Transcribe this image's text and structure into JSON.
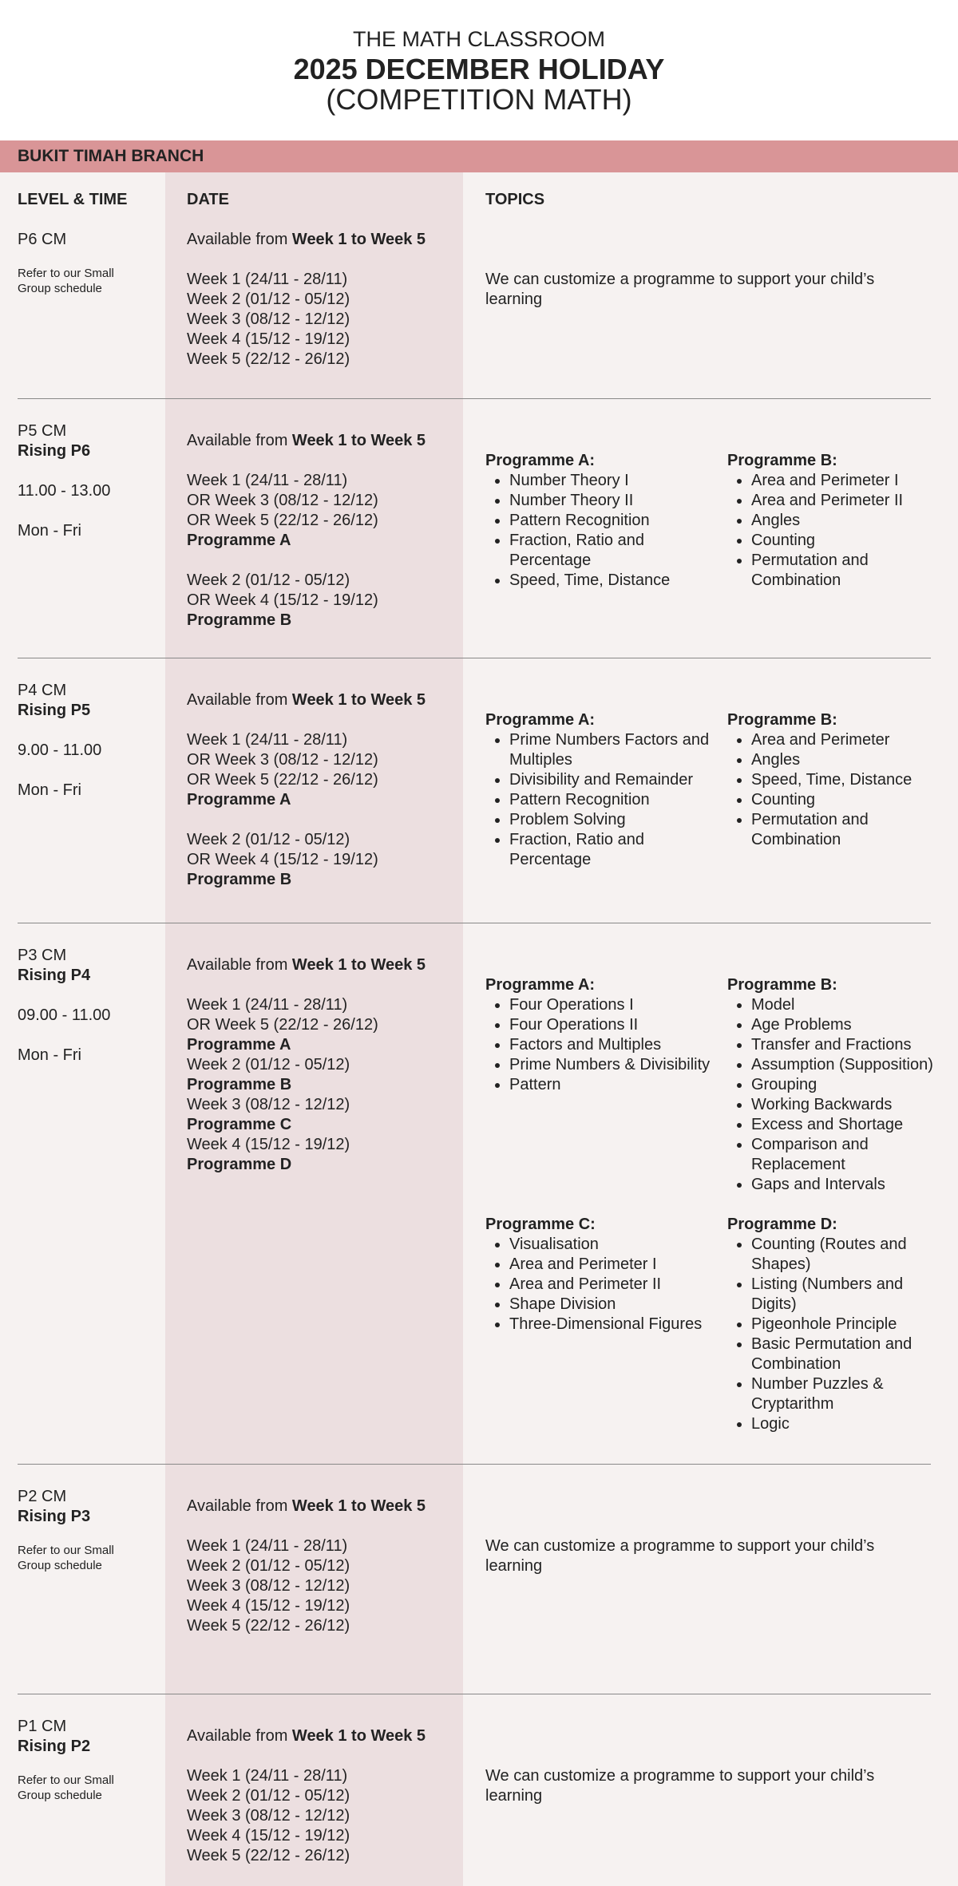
{
  "header": {
    "line1": "THE MATH CLASSROOM",
    "line2": "2025 DECEMBER HOLIDAY",
    "line3": "(COMPETITION MATH)"
  },
  "branch": "BUKIT TIMAH BRANCH",
  "columns": [
    "LEVEL & TIME",
    "DATE",
    "TOPICS"
  ],
  "rows": [
    {
      "level": "P6 CM",
      "note": "Refer to our Small Group schedule",
      "available": {
        "prefix": "Available from",
        "range": "Week 1 to Week 5"
      },
      "date_groups": [
        [
          {
            "text": "Week 1 (24/11 - 28/11)"
          },
          {
            "text": "Week 2 (01/12 - 05/12)"
          },
          {
            "text": "Week 3 (08/12 - 12/12)"
          },
          {
            "text": "Week 4 (15/12 - 19/12)"
          },
          {
            "text": "Week 5 (22/12 - 26/12)"
          }
        ]
      ],
      "topics_note": "We can customize a programme to support your child’s learning"
    },
    {
      "level": "P5 CM",
      "rising": "Rising P6",
      "time": "11.00 - 13.00",
      "days": "Mon - Fri",
      "available": {
        "prefix": "Available from",
        "range": "Week 1 to Week 5"
      },
      "date_groups": [
        [
          {
            "text": "Week 1 (24/11 - 28/11)"
          },
          {
            "text": "OR Week 3 (08/12 - 12/12)"
          },
          {
            "text": "OR Week 5 (22/12 - 26/12)"
          },
          {
            "text": "Programme A",
            "bold": true
          }
        ],
        [
          {
            "text": "Week 2 (01/12 - 05/12)"
          },
          {
            "text": "OR Week 4 (15/12 - 19/12)"
          },
          {
            "text": "Programme B",
            "bold": true
          }
        ]
      ],
      "programmes": [
        {
          "name": "Programme A:",
          "items": [
            "Number Theory I",
            "Number Theory II",
            "Pattern Recognition",
            "Fraction, Ratio and Percentage",
            "Speed, Time, Distance"
          ]
        },
        {
          "name": "Programme B:",
          "items": [
            "Area and Perimeter I",
            "Area and Perimeter II",
            "Angles",
            "Counting",
            "Permutation and Combination"
          ]
        }
      ]
    },
    {
      "level": "P4 CM",
      "rising": "Rising P5",
      "time": "9.00 - 11.00",
      "days": "Mon - Fri",
      "available": {
        "prefix": "Available from",
        "range": "Week 1 to Week 5"
      },
      "date_groups": [
        [
          {
            "text": "Week 1 (24/11 - 28/11)"
          },
          {
            "text": "OR Week 3 (08/12 - 12/12)"
          },
          {
            "text": "OR Week 5 (22/12 - 26/12)"
          },
          {
            "text": "Programme A",
            "bold": true
          }
        ],
        [
          {
            "text": "Week 2 (01/12 - 05/12)"
          },
          {
            "text": "OR Week 4 (15/12 - 19/12)"
          },
          {
            "text": "Programme B",
            "bold": true
          }
        ]
      ],
      "programmes": [
        {
          "name": "Programme A:",
          "items": [
            "Prime Numbers Factors and Multiples",
            "Divisibility and Remainder",
            "Pattern Recognition",
            "Problem Solving",
            "Fraction, Ratio and Percentage"
          ]
        },
        {
          "name": "Programme B:",
          "items": [
            "Area and Perimeter",
            "Angles",
            "Speed, Time, Distance",
            "Counting",
            "Permutation and Combination"
          ]
        }
      ]
    },
    {
      "level": "P3 CM",
      "rising": "Rising P4",
      "time": "09.00 - 11.00",
      "days": "Mon - Fri",
      "available": {
        "prefix": "Available from",
        "range": "Week 1 to Week 5"
      },
      "date_groups": [
        [
          {
            "text": "Week 1 (24/11 - 28/11)"
          },
          {
            "text": "OR Week 5 (22/12 - 26/12)"
          },
          {
            "text": "Programme A",
            "bold": true
          },
          {
            "text": "Week 2 (01/12 - 05/12)"
          },
          {
            "text": "Programme B",
            "bold": true
          },
          {
            "text": "Week 3 (08/12 - 12/12)"
          },
          {
            "text": "Programme C",
            "bold": true
          },
          {
            "text": "Week 4 (15/12 - 19/12)"
          },
          {
            "text": "Programme D",
            "bold": true
          }
        ]
      ],
      "programmes": [
        {
          "name": "Programme A:",
          "items": [
            "Four Operations I",
            "Four Operations II",
            "Factors and Multiples",
            "Prime Numbers & Divisibility",
            "Pattern"
          ]
        },
        {
          "name": "Programme B:",
          "items": [
            "Model",
            "Age Problems",
            "Transfer and Fractions",
            "Assumption (Supposition)",
            "Grouping",
            "Working Backwards",
            "Excess and Shortage",
            "Comparison and Replacement",
            "Gaps and Intervals"
          ]
        },
        {
          "name": "Programme C:",
          "items": [
            "Visualisation",
            "Area and Perimeter I",
            "Area and Perimeter II",
            "Shape Division",
            "Three-Dimensional Figures"
          ]
        },
        {
          "name": "Programme D:",
          "items": [
            "Counting (Routes and Shapes)",
            "Listing (Numbers and Digits)",
            "Pigeonhole Principle",
            "Basic Permutation and Combination",
            "Number Puzzles & Cryptarithm",
            "Logic"
          ]
        }
      ]
    },
    {
      "level": "P2 CM",
      "rising": "Rising P3",
      "note": "Refer to our Small Group schedule",
      "available": {
        "prefix": "Available from",
        "range": "Week 1 to Week 5"
      },
      "date_groups": [
        [
          {
            "text": "Week 1 (24/11 - 28/11)"
          },
          {
            "text": "Week 2 (01/12 - 05/12)"
          },
          {
            "text": "Week 3 (08/12 - 12/12)"
          },
          {
            "text": "Week 4 (15/12 - 19/12)"
          },
          {
            "text": "Week 5 (22/12 - 26/12)"
          }
        ]
      ],
      "topics_note": "We can customize a programme to support your child’s learning"
    },
    {
      "level": "P1 CM",
      "rising": "Rising P2",
      "note": "Refer to our Small Group schedule",
      "available": {
        "prefix": "Available from",
        "range": "Week 1 to Week 5"
      },
      "date_groups": [
        [
          {
            "text": "Week 1 (24/11 - 28/11)"
          },
          {
            "text": "Week 2 (01/12 - 05/12)"
          },
          {
            "text": "Week 3 (08/12 - 12/12)"
          },
          {
            "text": "Week 4 (15/12 - 19/12)"
          },
          {
            "text": "Week 5 (22/12 - 26/12)"
          }
        ]
      ],
      "topics_note": "We can customize a programme to support your child’s learning"
    }
  ]
}
